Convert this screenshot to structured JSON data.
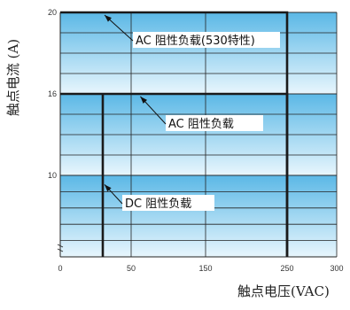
{
  "chart_data": {
    "type": "area",
    "xlabel": "触点电压(VAC)",
    "ylabel": "触点电流 (A)",
    "xlim": [
      0,
      300
    ],
    "ylim": [
      0,
      20
    ],
    "x_tick_labels": [
      "0",
      "50",
      "150",
      "250",
      "300"
    ],
    "y_tick_labels": [
      "10",
      "16",
      "20"
    ],
    "grid": true,
    "series": [
      {
        "name": "AC 阻性负载(530特性)",
        "x": [
          0,
          250,
          250
        ],
        "y": [
          20,
          20,
          0
        ]
      },
      {
        "name": "AC 阻性负载",
        "x": [
          0,
          250,
          250
        ],
        "y": [
          16,
          16,
          0
        ]
      },
      {
        "name": "DC 阻性负载",
        "x": [
          30,
          30
        ],
        "y": [
          16,
          0
        ]
      }
    ],
    "annotations": [
      "AC 阻性负载(530特性)",
      "AC 阻性负载",
      "DC 阻性负载"
    ],
    "colors": {
      "band_top": "#5bb8e6",
      "band_bottom": "#e8f6fd",
      "line": "#1a1a1a",
      "grid": "#222222"
    }
  }
}
